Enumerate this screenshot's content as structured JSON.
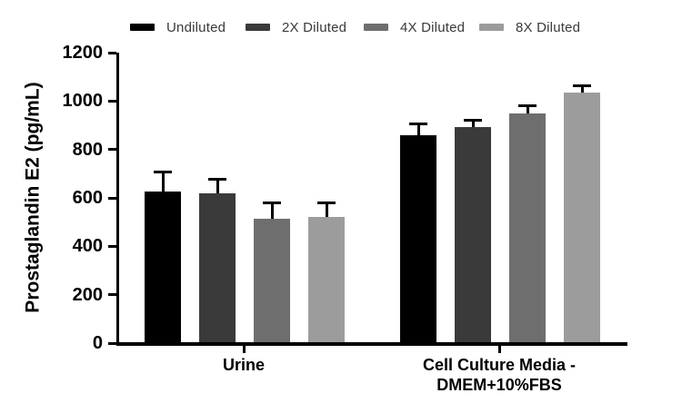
{
  "chart_data": {
    "type": "bar",
    "title": "",
    "ylabel": "Prostaglandin E2 (pg/mL)",
    "xlabel": "",
    "ylim": [
      0,
      1200
    ],
    "ytick_step": 200,
    "ytick_labels": [
      "0",
      "200",
      "400",
      "600",
      "800",
      "1000",
      "1200"
    ],
    "grid": false,
    "legend_position": "top",
    "error_bars": "upper",
    "categories": [
      "Urine",
      "Cell Culture Media - DMEM+10%FBS"
    ],
    "categories_display_lines": [
      [
        "Urine"
      ],
      [
        "Cell Culture Media -",
        "DMEM+10%FBS"
      ]
    ],
    "series": [
      {
        "name": "Undiluted",
        "color": "#000000",
        "values": [
          626,
          859
        ],
        "errors_upper": [
          81,
          50
        ]
      },
      {
        "name": "2X Diluted",
        "color": "#3a3a3a",
        "values": [
          620,
          891
        ],
        "errors_upper": [
          60,
          31
        ]
      },
      {
        "name": "4X Diluted",
        "color": "#6e6e6e",
        "values": [
          514,
          948
        ],
        "errors_upper": [
          66,
          35
        ]
      },
      {
        "name": "8X Diluted",
        "color": "#9c9c9c",
        "values": [
          521,
          1035
        ],
        "errors_upper": [
          59,
          30
        ]
      }
    ],
    "axis_color": "#000000",
    "background_color": "#ffffff"
  }
}
